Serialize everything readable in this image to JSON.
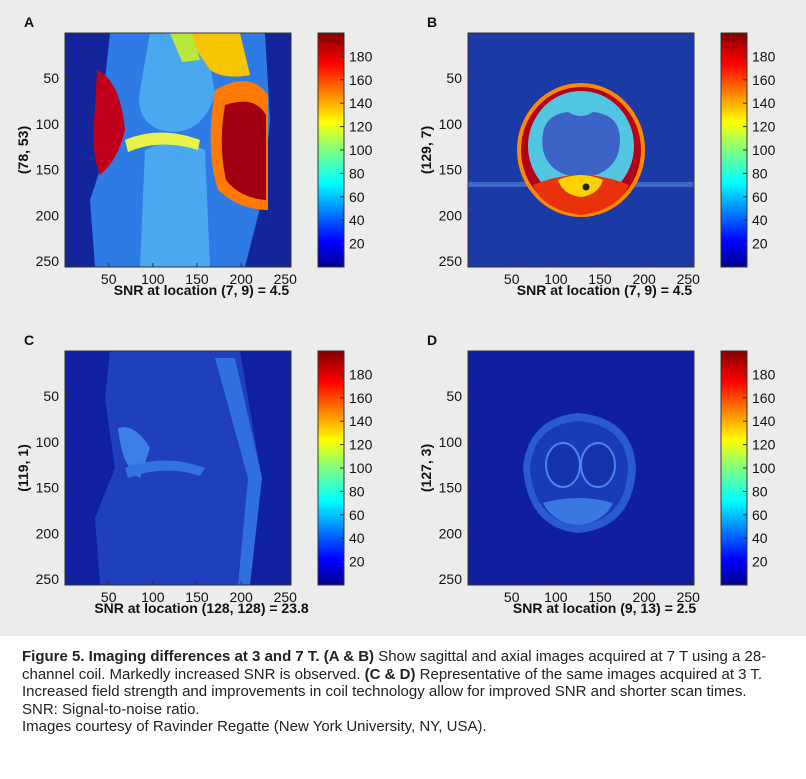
{
  "figure": {
    "panels": [
      {
        "id": "A",
        "letter": "A",
        "y_label": "(78, 53)",
        "snr_label": "SNR at location (7, 9) = 4.5",
        "view": "sagittal",
        "field": "7T"
      },
      {
        "id": "B",
        "letter": "B",
        "y_label": "(129, 7)",
        "snr_label": "SNR at location (7, 9) = 4.5",
        "view": "axial",
        "field": "7T"
      },
      {
        "id": "C",
        "letter": "C",
        "y_label": "(119, 1)",
        "snr_label": "SNR at location (128, 128) = 23.8",
        "view": "sagittal",
        "field": "3T"
      },
      {
        "id": "D",
        "letter": "D",
        "y_label": "(127, 3)",
        "snr_label": "SNR at location (9, 13) = 2.5",
        "view": "axial",
        "field": "3T"
      }
    ],
    "x_ticks": [
      "50",
      "100",
      "150",
      "200",
      "250"
    ],
    "y_ticks": [
      "50",
      "100",
      "150",
      "200",
      "250"
    ],
    "colorbar_ticks": [
      "20",
      "40",
      "60",
      "80",
      "100",
      "120",
      "140",
      "160",
      "180"
    ],
    "colorbar_range": [
      0,
      200
    ],
    "colormap": "jet"
  },
  "caption": {
    "title": "Figure 5. Imaging differences at 3 and 7 T.",
    "ab_ref": "(A & B)",
    "text1": " Show sagittal and axial images acquired at 7 T using a 28-channel coil. Markedly increased SNR is observed. ",
    "cd_ref": "(C & D)",
    "text2": " Representative of the same images acquired at 3 T. Increased field strength and improvements in coil technology allow for improved SNR and shorter scan times.",
    "abbrev": "SNR: Signal-to-noise ratio.",
    "credit": "Images courtesy of Ravinder Regatte (New York University, NY, USA)."
  }
}
